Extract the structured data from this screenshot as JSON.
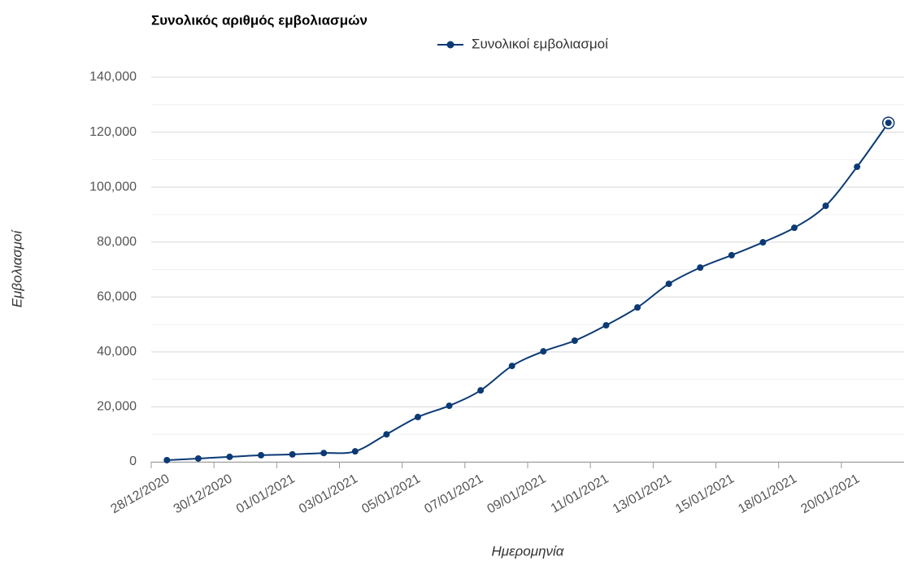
{
  "chart_data": {
    "type": "line",
    "title": "Συνολικός αριθμός εμβολιασμών",
    "y_label": "Εμβολιασμοί",
    "x_label": "Ημερομηνία",
    "categories": [
      "28/12/2020",
      null,
      "30/12/2020",
      null,
      "01/01/2021",
      null,
      "03/01/2021",
      null,
      "05/01/2021",
      null,
      "07/01/2021",
      null,
      "09/01/2021",
      null,
      "11/01/2021",
      null,
      "13/01/2021",
      null,
      "15/01/2021",
      null,
      "18/01/2021",
      null,
      "20/01/2021",
      null
    ],
    "series": [
      {
        "name": "Συνολικοί εμβολιασμοί",
        "color": "#0b3a75",
        "values": [
          600,
          1200,
          1800,
          2400,
          2700,
          3200,
          3800,
          10000,
          16300,
          20400,
          26000,
          34900,
          40200,
          44100,
          49700,
          56200,
          64800,
          70700,
          75200,
          79900,
          85200,
          93200,
          107400,
          123400
        ]
      }
    ],
    "ylim": [
      0,
      140000
    ],
    "yticks": [
      0,
      {
        "value": 20000,
        "label": "20,000"
      },
      {
        "value": 40000,
        "label": "40,000"
      },
      {
        "value": 60000,
        "label": "60,000"
      },
      {
        "value": 80000,
        "label": "80,000"
      },
      {
        "value": 100000,
        "label": "100,000"
      },
      {
        "value": 120000,
        "label": "120,000"
      },
      {
        "value": 140000,
        "label": "140,000"
      }
    ],
    "grid": true,
    "legend": "top"
  }
}
